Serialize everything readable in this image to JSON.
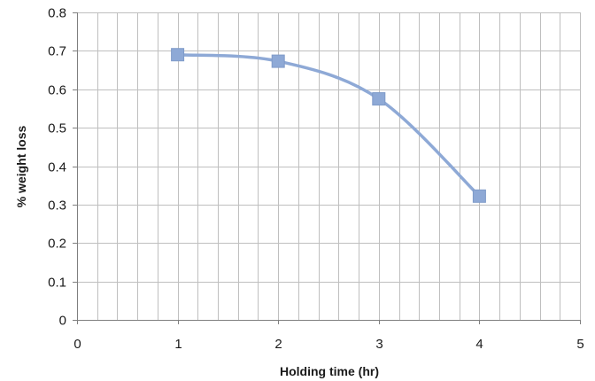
{
  "chart_data": {
    "type": "line",
    "title": "",
    "xlabel": "Holding time (hr)",
    "ylabel": "% weight loss",
    "xlim": [
      0,
      5
    ],
    "ylim": [
      0,
      0.8
    ],
    "x_ticks": [
      "0",
      "1",
      "2",
      "3",
      "4",
      "5"
    ],
    "y_ticks": [
      "0",
      "0.1",
      "0.2",
      "0.3",
      "0.4",
      "0.5",
      "0.6",
      "0.7",
      "0.8"
    ],
    "x_minor_step": 0.2,
    "y_major_step": 0.1,
    "grid": true,
    "smooth": true,
    "marker": "square",
    "series": [
      {
        "x": [
          1,
          2,
          3,
          4
        ],
        "values": [
          0.69,
          0.673,
          0.575,
          0.322
        ]
      }
    ],
    "colors": {
      "series": "#8EA9D6",
      "grid": "#BFBFBF",
      "axis": "#7F7F7F"
    }
  }
}
